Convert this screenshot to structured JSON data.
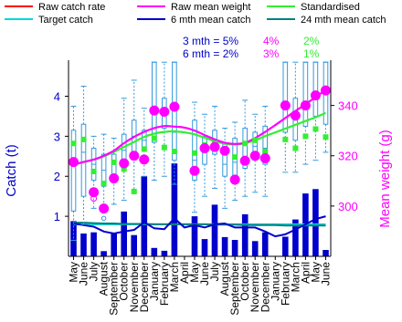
{
  "chart_data": {
    "type": "bar",
    "title": "",
    "xlabel": "",
    "ylabel": "Catch (t)",
    "ylabel_right": "Mean weight (g)",
    "ylim": [
      0,
      4.9
    ],
    "ylim_right": [
      280,
      358
    ],
    "yticks": [
      1,
      2,
      3,
      4
    ],
    "yticks_right": [
      300,
      320,
      340
    ],
    "grid": false,
    "categories": [
      "May",
      "June",
      "July",
      "August",
      "September",
      "October",
      "November",
      "December",
      "January",
      "February",
      "March",
      "April",
      "May",
      "June",
      "July",
      "August",
      "September",
      "October",
      "November",
      "December",
      "January",
      "February",
      "March",
      "April",
      "May",
      "June"
    ],
    "legend": [
      {
        "label": "Raw catch rate",
        "color": "#ff0000"
      },
      {
        "label": "Raw mean weight",
        "color": "#ff00ff"
      },
      {
        "label": "Standardised",
        "color": "#33ee33"
      },
      {
        "label": "Target catch",
        "color": "#00d8d8"
      },
      {
        "label": "6 mth mean catch",
        "color": "#0000cc"
      },
      {
        "label": "24 mth mean catch",
        "color": "#008080"
      }
    ],
    "stats": {
      "rows": [
        {
          "label": "3 mth = 5%",
          "pct_magenta": "4%",
          "pct_green": "2%"
        },
        {
          "label": "6 mth = 2%",
          "pct_magenta": "3%",
          "pct_green": "1%"
        }
      ],
      "colors": {
        "label": "#0000cc",
        "magenta": "#ff00ff",
        "green": "#33ee33"
      }
    },
    "series": [
      {
        "name": "Monthly catch (bars)",
        "color": "#0000cc",
        "values": [
          0.88,
          0.57,
          0.6,
          0.13,
          0.58,
          1.12,
          0.53,
          2.0,
          0.21,
          0.14,
          2.32,
          0,
          1.0,
          0.43,
          1.29,
          0.48,
          0.41,
          1.05,
          0.38,
          0.6,
          0,
          0.49,
          0.92,
          1.57,
          1.68,
          0.16
        ]
      },
      {
        "name": "Raw catch rate",
        "color": "#ff0000",
        "values": [
          null,
          null,
          null,
          null,
          null,
          null,
          null,
          null,
          null,
          null,
          null,
          null,
          null,
          null,
          null,
          null,
          null,
          null,
          null,
          null,
          null,
          null,
          null,
          null,
          null,
          null
        ]
      },
      {
        "name": "Target catch",
        "color": "#00d8d8",
        "values": [
          0.8,
          0.8,
          0.8,
          0.8,
          0.8,
          0.8,
          0.8,
          0.8,
          0.8,
          0.8,
          0.8,
          0.8,
          0.8,
          0.8,
          0.8,
          0.8,
          0.8,
          0.8,
          0.8,
          0.8,
          0.8,
          0.8,
          0.8,
          0.8,
          0.8,
          0.8
        ]
      },
      {
        "name": "24 mth mean catch",
        "color": "#008080",
        "values": [
          0.84,
          0.84,
          0.83,
          0.82,
          0.82,
          0.81,
          0.81,
          0.81,
          0.8,
          0.8,
          0.8,
          0.8,
          0.8,
          0.8,
          0.79,
          0.79,
          0.79,
          0.78,
          0.78,
          0.78,
          0.78,
          0.77,
          0.77,
          0.77,
          0.77,
          0.77
        ]
      },
      {
        "name": "6 mth mean catch",
        "color": "#0000cc",
        "values": [
          0.82,
          0.78,
          0.74,
          0.62,
          0.57,
          0.62,
          0.66,
          0.85,
          0.7,
          0.68,
          0.95,
          0.72,
          0.78,
          0.72,
          0.8,
          0.82,
          0.72,
          0.72,
          0.72,
          0.62,
          0.5,
          0.55,
          0.67,
          0.8,
          0.93,
          1.0
        ]
      },
      {
        "name": "Standardised",
        "color": "#33ee33",
        "axis": "right",
        "values": [
          316.5,
          317.5,
          318.5,
          319.8,
          321.5,
          323.5,
          325.5,
          327.5,
          328.8,
          329.5,
          329.7,
          329.3,
          328.5,
          327.2,
          325.8,
          324.8,
          324.5,
          325,
          326.2,
          327.8,
          329.3,
          330.8,
          332.3,
          333.8,
          335.3,
          337
        ]
      },
      {
        "name": "Raw mean weight",
        "color": "#ff00ff",
        "axis": "right",
        "values": [
          316.5,
          317.5,
          318.5,
          320,
          322,
          325,
          327.5,
          329.5,
          331,
          331.8,
          331.6,
          331.2,
          330,
          328.2,
          326.5,
          325.2,
          324.7,
          325.2,
          327,
          329.5,
          332.2,
          335,
          337.8,
          340.5,
          343.3,
          346.2
        ]
      }
    ],
    "boxes": [
      {
        "q1": 1.13,
        "med": 2.45,
        "q3": 3.15,
        "lo": 0.4,
        "hi": 3.75
      },
      {
        "q1": 1.5,
        "med": 2.6,
        "q3": 3.3,
        "lo": 0.8,
        "hi": 4.25
      },
      {
        "q1": 1.9,
        "med": 2.3,
        "q3": 2.7,
        "lo": 1.2,
        "hi": 3.0
      },
      {
        "q1": 1.75,
        "med": 2.15,
        "q3": 2.55,
        "lo": 1.15,
        "hi": 3.05
      },
      {
        "q1": 1.9,
        "med": 2.3,
        "q3": 2.55,
        "lo": 1.3,
        "hi": 2.95
      },
      {
        "q1": 2.3,
        "med": 2.65,
        "q3": 3.05,
        "lo": 1.4,
        "hi": 3.95
      },
      {
        "q1": 2.55,
        "med": 3.0,
        "q3": 3.4,
        "lo": 1.6,
        "hi": 4.4
      },
      {
        "q1": 2.65,
        "med": 2.9,
        "q3": 3.15,
        "lo": 2.0,
        "hi": 3.7
      },
      {
        "q1": 2.85,
        "med": 3.6,
        "q3": 4.85,
        "lo": 1.9,
        "hi": 4.85
      },
      {
        "q1": 3.2,
        "med": 3.6,
        "q3": 3.95,
        "lo": 2.0,
        "hi": 4.85
      },
      {
        "q1": 2.4,
        "med": 3.1,
        "q3": 4.85,
        "lo": 1.8,
        "hi": 4.85
      },
      null,
      {
        "q1": 1.9,
        "med": 2.4,
        "q3": 3.4,
        "lo": 1.1,
        "hi": 3.85
      },
      {
        "q1": 2.3,
        "med": 2.65,
        "q3": 3.0,
        "lo": 1.5,
        "hi": 3.55
      },
      {
        "q1": 2.55,
        "med": 2.8,
        "q3": 3.15,
        "lo": 1.7,
        "hi": 3.75
      },
      {
        "q1": 2.0,
        "med": 2.3,
        "q3": 2.8,
        "lo": 1.2,
        "hi": 3.2
      },
      {
        "q1": 2.0,
        "med": 2.35,
        "q3": 2.95,
        "lo": 1.4,
        "hi": 3.35
      },
      {
        "q1": 2.2,
        "med": 2.5,
        "q3": 3.2,
        "lo": 1.5,
        "hi": 3.9
      },
      {
        "q1": 2.4,
        "med": 2.75,
        "q3": 3.1,
        "lo": 1.6,
        "hi": 3.55
      },
      {
        "q1": 2.3,
        "med": 2.7,
        "q3": 3.25,
        "lo": 1.5,
        "hi": 3.75
      },
      null,
      {
        "q1": 3.1,
        "med": 3.8,
        "q3": 4.85,
        "lo": 2.1,
        "hi": 4.85
      },
      {
        "q1": 2.9,
        "med": 3.4,
        "q3": 3.95,
        "lo": 2.1,
        "hi": 4.85
      },
      {
        "q1": 3.25,
        "med": 3.8,
        "q3": 4.85,
        "lo": 2.3,
        "hi": 4.85
      },
      {
        "q1": 3.5,
        "med": 4.0,
        "q3": 4.85,
        "lo": 2.4,
        "hi": 4.85
      },
      {
        "q1": 3.3,
        "med": 4.1,
        "q3": 4.85,
        "lo": 2.6,
        "hi": 4.85
      }
    ],
    "green_points": [
      2.82,
      2.92,
      2.12,
      1.82,
      2.35,
      2.18,
      1.62,
      2.68,
      2.95,
      2.72,
      2.62,
      null,
      2.58,
      2.78,
      2.82,
      2.62,
      2.48,
      2.82,
      2.9,
      2.62,
      null,
      2.92,
      2.7,
      3.0,
      3.18,
      2.98
    ],
    "magenta_points": [
      317.5,
      null,
      305.5,
      299,
      311,
      317,
      320,
      318.5,
      338,
      337.5,
      339.5,
      null,
      314,
      323,
      323.5,
      322,
      310.5,
      318,
      320,
      319,
      null,
      340,
      336,
      340,
      344,
      346
    ],
    "hollow_points": [
      null,
      null,
      303,
      null,
      null,
      null,
      null,
      null,
      null,
      null,
      null,
      null,
      null,
      null,
      null,
      null,
      null,
      null,
      null,
      null,
      null,
      null,
      null,
      null,
      null,
      null
    ],
    "outlier_points": [
      null,
      null,
      null,
      0.95,
      null,
      null,
      null,
      null,
      null,
      null,
      null,
      null,
      null,
      null,
      null,
      null,
      null,
      null,
      null,
      null,
      null,
      null,
      null,
      null,
      null,
      null
    ]
  }
}
